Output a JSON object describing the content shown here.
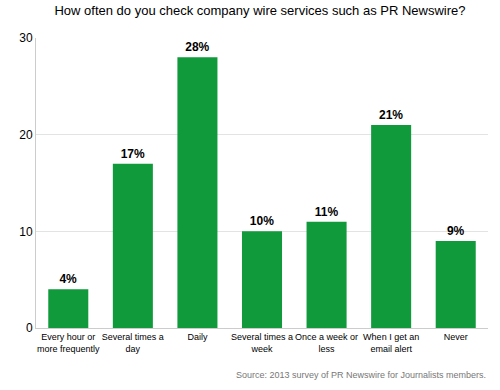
{
  "chart_data": {
    "type": "bar",
    "title": "How often do you check company wire services such as PR Newswire?",
    "categories": [
      "Every hour or more frequently",
      "Several times a day",
      "Daily",
      "Several times a week",
      "Once a week or less",
      "When I get an email alert",
      "Never"
    ],
    "values": [
      4,
      17,
      28,
      10,
      11,
      21,
      9
    ],
    "value_labels": [
      "4%",
      "17%",
      "28%",
      "10%",
      "11%",
      "21%",
      "9%"
    ],
    "data_labels": true,
    "color": "#109a3b",
    "ylim": [
      0,
      30
    ],
    "yticks": [
      0,
      10,
      20,
      30
    ],
    "grid": true,
    "annotations": [
      "Source: 2013 survey of PR Newswire for Journalists members."
    ]
  }
}
